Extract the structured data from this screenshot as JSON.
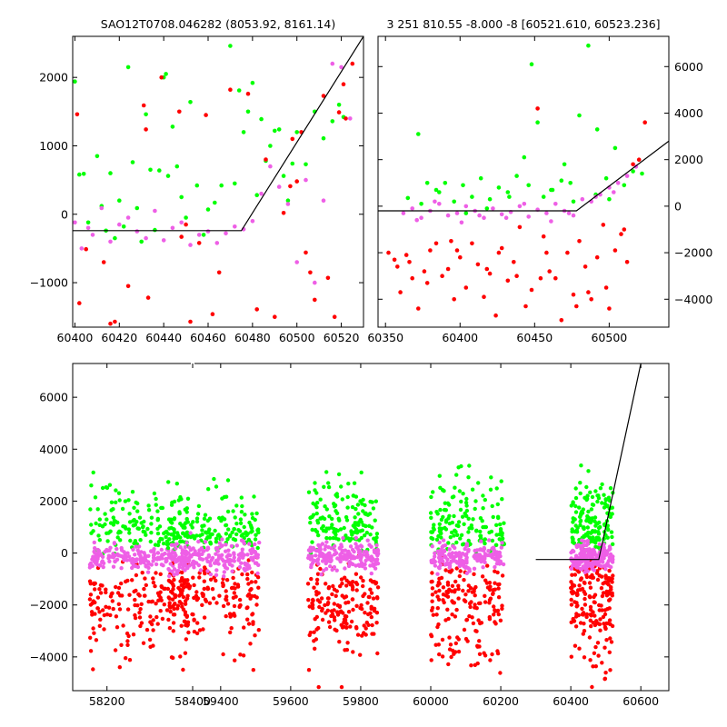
{
  "chart_data": [
    {
      "id": "top-left",
      "type": "scatter",
      "title": "SAO12T0708.046282 (8053.92, 8161.14)",
      "xlim": [
        60399,
        60530
      ],
      "ylim": [
        -1650,
        2600
      ],
      "xticks": [
        60400,
        60420,
        60440,
        60460,
        60480,
        60500,
        60520
      ],
      "yticks": [
        -1000,
        0,
        1000,
        2000
      ],
      "ytick_labels": [
        "−1000",
        "0",
        "1000",
        "2000"
      ],
      "ytick_side": "left",
      "series": [
        {
          "color": "#00ff00",
          "x": [
            60400,
            60402,
            60404,
            60406,
            60410,
            60412,
            60414,
            60416,
            60418,
            60420,
            60422,
            60424,
            60426,
            60428,
            60430,
            60432,
            60434,
            60436,
            60438,
            60440,
            60441,
            60442,
            60444,
            60446,
            60448,
            60450,
            60452,
            60455,
            60458,
            60460,
            60463,
            60466,
            60470,
            60472,
            60474,
            60476,
            60478,
            60480,
            60482,
            60484,
            60486,
            60488,
            60490,
            60492,
            60494,
            60496,
            60498,
            60500,
            60504,
            60508,
            60512,
            60516,
            60519,
            60521
          ],
          "y": [
            1940,
            580,
            590,
            -120,
            850,
            120,
            -240,
            600,
            -350,
            200,
            -180,
            2150,
            760,
            90,
            -400,
            1460,
            650,
            -230,
            640,
            2000,
            2050,
            560,
            1280,
            700,
            250,
            -50,
            1640,
            420,
            -300,
            70,
            170,
            420,
            2460,
            450,
            1810,
            1200,
            1500,
            1920,
            280,
            1390,
            780,
            1000,
            1220,
            1240,
            560,
            200,
            740,
            1200,
            730,
            1500,
            1110,
            1360,
            1600,
            1420
          ]
        },
        {
          "color": "#ff0000",
          "x": [
            60401,
            60402,
            60405,
            60413,
            60416,
            60418,
            60424,
            60431,
            60432,
            60433,
            60439,
            60447,
            60448,
            60450,
            60452,
            60456,
            60459,
            60462,
            60465,
            60470,
            60478,
            60482,
            60486,
            60490,
            60494,
            60497,
            60498,
            60500,
            60502,
            60504,
            60506,
            60508,
            60512,
            60514,
            60517,
            60519,
            60521,
            60522,
            60525
          ],
          "y": [
            1460,
            -1300,
            -510,
            -700,
            -1600,
            -1570,
            -1050,
            1590,
            1240,
            -1220,
            2000,
            1500,
            -330,
            -150,
            -1570,
            -420,
            1450,
            -1460,
            -850,
            1820,
            1760,
            -1390,
            800,
            -1500,
            20,
            410,
            1100,
            480,
            1200,
            -560,
            -850,
            -1250,
            1730,
            -930,
            -1500,
            1490,
            1900,
            1400,
            2200
          ]
        },
        {
          "color": "#ee5fe6",
          "x": [
            60400,
            60403,
            60406,
            60408,
            60412,
            60416,
            60420,
            60424,
            60428,
            60432,
            60436,
            60440,
            60444,
            60448,
            60452,
            60456,
            60460,
            60464,
            60468,
            60472,
            60476,
            60480,
            60484,
            60488,
            60492,
            60496,
            60500,
            60504,
            60508,
            60512,
            60516,
            60520,
            60524
          ],
          "y": [
            -120,
            -500,
            -200,
            -300,
            90,
            -400,
            -150,
            -50,
            -250,
            -350,
            50,
            -380,
            -200,
            -120,
            -450,
            -300,
            -250,
            -420,
            -280,
            -180,
            -220,
            -100,
            300,
            700,
            400,
            150,
            -700,
            500,
            -1000,
            200,
            2200,
            2150,
            1400
          ]
        }
      ],
      "model": {
        "x": [
          60399,
          60475,
          60530
        ],
        "y": [
          -240,
          -240,
          2600
        ]
      }
    },
    {
      "id": "top-right",
      "type": "scatter",
      "title": "3 251 810.55 -8.000 -8 [60521.610, 60523.236]",
      "xlim": [
        60345,
        60540
      ],
      "ylim": [
        -5200,
        7300
      ],
      "xticks": [
        60350,
        60400,
        60450,
        60500
      ],
      "yticks": [
        -4000,
        -2000,
        0,
        2000,
        4000,
        6000
      ],
      "ytick_labels": [
        "−4000",
        "−2000",
        "0",
        "2000",
        "4000",
        "6000"
      ],
      "ytick_side": "right",
      "series": [
        {
          "color": "#00ff00",
          "x": [
            60365,
            60372,
            60378,
            60384,
            60390,
            60396,
            60402,
            60408,
            60414,
            60420,
            60426,
            60432,
            60438,
            60443,
            60448,
            60452,
            60456,
            60462,
            60468,
            60474,
            60480,
            60486,
            60492,
            60498,
            60504,
            60510,
            60516,
            60522,
            60374,
            60404,
            60433,
            60461,
            60476,
            60491,
            60386,
            60418,
            60446,
            60470,
            60500
          ],
          "y": [
            350,
            3100,
            1000,
            700,
            1000,
            200,
            900,
            400,
            1200,
            300,
            800,
            600,
            1300,
            2100,
            6100,
            3600,
            400,
            700,
            1100,
            1000,
            3900,
            6900,
            3300,
            1200,
            2500,
            900,
            1500,
            1400,
            100,
            -300,
            400,
            700,
            200,
            500,
            600,
            -100,
            900,
            1800,
            300
          ]
        },
        {
          "color": "#ff0000",
          "x": [
            60352,
            60356,
            60360,
            60364,
            60368,
            60372,
            60376,
            60380,
            60384,
            60388,
            60392,
            60396,
            60400,
            60404,
            60408,
            60412,
            60416,
            60420,
            60424,
            60428,
            60432,
            60436,
            60440,
            60444,
            60448,
            60452,
            60456,
            60460,
            60464,
            60468,
            60472,
            60476,
            60480,
            60484,
            60488,
            60492,
            60496,
            60500,
            60504,
            60508,
            60512,
            60516,
            60520,
            60524,
            60358,
            60378,
            60398,
            60418,
            60438,
            60458,
            60478,
            60498,
            60366,
            60394,
            60426,
            60454,
            60486,
            60510
          ],
          "y": [
            -2000,
            -2300,
            -3700,
            -2100,
            -3100,
            -4400,
            -2800,
            -1900,
            -1600,
            -3000,
            -2700,
            -4000,
            -2200,
            -3500,
            -1600,
            -2500,
            -3900,
            -2900,
            -4700,
            -1800,
            -3200,
            -2400,
            -900,
            -4300,
            -3600,
            4200,
            -1300,
            -2800,
            -3100,
            -4900,
            -2000,
            -3800,
            -1500,
            -2600,
            -4000,
            -2200,
            -800,
            -4400,
            -1900,
            -1200,
            -2400,
            1800,
            2000,
            3600,
            -2600,
            -3300,
            -1900,
            -2700,
            -3000,
            -2000,
            -4300,
            -3500,
            -2400,
            -1500,
            -2000,
            -3100,
            -3700,
            -1000
          ]
        },
        {
          "color": "#ee5fe6",
          "x": [
            60362,
            60368,
            60374,
            60380,
            60386,
            60392,
            60398,
            60404,
            60410,
            60416,
            60422,
            60428,
            60434,
            60440,
            60446,
            60452,
            60458,
            60464,
            60470,
            60476,
            60482,
            60488,
            60494,
            60500,
            60506,
            60512,
            60518,
            60371,
            60401,
            60431,
            60461,
            60491,
            60383,
            60413,
            60443,
            60473,
            60503
          ],
          "y": [
            -300,
            -100,
            -500,
            -200,
            100,
            -400,
            -300,
            0,
            -200,
            -500,
            -100,
            -350,
            -250,
            0,
            -450,
            -150,
            -300,
            100,
            -200,
            -400,
            300,
            200,
            500,
            800,
            1000,
            1300,
            1700,
            -600,
            -700,
            -500,
            -650,
            400,
            200,
            -400,
            100,
            -300,
            600
          ]
        }
      ],
      "model": {
        "x": [
          60345,
          60478,
          60540
        ],
        "y": [
          -200,
          -200,
          2800
        ]
      }
    },
    {
      "id": "bottom",
      "type": "scatter",
      "title": "",
      "xlim": [
        58120,
        60680
      ],
      "ylim": [
        -5300,
        7300
      ],
      "xticks": [
        58200,
        58400,
        59400,
        59600,
        59800,
        60000,
        60200,
        60400,
        60600
      ],
      "xtick_labels": [
        "58200",
        "58400",
        "59400",
        "59600",
        "59800",
        "60000",
        "60200",
        "60400",
        "60600"
      ],
      "yticks": [
        -4000,
        -2000,
        0,
        2000,
        4000,
        6000
      ],
      "ytick_labels": [
        "−4000",
        "−2000",
        "0",
        "2000",
        "4000",
        "6000"
      ],
      "ytick_side": "left",
      "axis_break": {
        "after": 58400,
        "before": 59400
      },
      "segments": [
        {
          "from": 58150,
          "to": 58400
        },
        {
          "from": 59240,
          "to": 59520
        },
        {
          "from": 59640,
          "to": 59860
        },
        {
          "from": 59990,
          "to": 60220
        },
        {
          "from": 60400,
          "to": 60530
        }
      ],
      "season_bounds": [
        [
          58160,
          58390
        ],
        [
          59250,
          59510
        ],
        [
          59650,
          59850
        ],
        [
          60000,
          60210
        ],
        [
          60400,
          60520
        ]
      ],
      "season_spread": [
        [
          800,
          300,
          2600,
          1800
        ],
        [
          1200,
          -100,
          2400,
          1500
        ],
        [
          900,
          -200,
          2700,
          2100
        ],
        [
          1000,
          -200,
          2900,
          2300
        ],
        [
          900,
          -200,
          2700,
          1900
        ]
      ],
      "series_meta": [
        {
          "color": "#00ff00",
          "name": ""
        },
        {
          "color": "#ff0000",
          "name": ""
        },
        {
          "color": "#ee5fe6",
          "name": ""
        }
      ],
      "model": {
        "x": [
          60300,
          60480,
          60600
        ],
        "y": [
          -250,
          -250,
          7300
        ]
      }
    }
  ]
}
